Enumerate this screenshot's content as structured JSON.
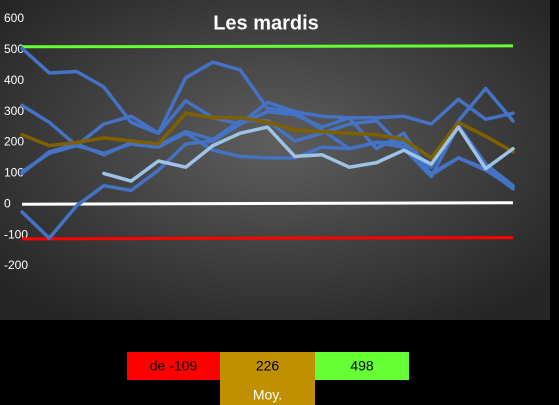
{
  "chart_data": {
    "type": "line",
    "title": "Les mardis",
    "categories": [
      null,
      null,
      null,
      null,
      null,
      null,
      null,
      null,
      null,
      null,
      null,
      null,
      null,
      null,
      null,
      null,
      null,
      null,
      null
    ],
    "ylim": [
      -200,
      600
    ],
    "yticks": [
      -200,
      -100,
      0,
      100,
      200,
      300,
      400,
      500,
      600
    ],
    "grid": false,
    "series": [
      {
        "color": "#4472c4",
        "values": [
          505,
          425,
          430,
          380,
          265,
          230,
          410,
          460,
          435,
          310,
          300,
          285,
          280,
          280,
          285,
          260,
          340,
          275,
          295
        ]
      },
      {
        "color": "#4472c4",
        "values": [
          320,
          265,
          190,
          260,
          285,
          230,
          335,
          280,
          260,
          300,
          290,
          250,
          280,
          180,
          230,
          95,
          150,
          115,
          50
        ]
      },
      {
        "color": "#4472c4",
        "values": [
          -25,
          -110,
          -5,
          60,
          45,
          110,
          195,
          205,
          260,
          330,
          300,
          240,
          180,
          200,
          200,
          120,
          270,
          375,
          270
        ]
      },
      {
        "color": "#4472c4",
        "values": [
          100,
          170,
          195,
          160,
          200,
          190,
          235,
          210,
          270,
          270,
          205,
          230,
          260,
          270,
          180,
          90,
          255,
          130,
          60
        ]
      },
      {
        "color": "#4472c4",
        "values": [
          105,
          165,
          190,
          165,
          195,
          185,
          230,
          175,
          155,
          150,
          150,
          185,
          180,
          200,
          185,
          100,
          150,
          110,
          55
        ]
      },
      {
        "color": "#7f6000",
        "values": [
          225,
          190,
          200,
          215,
          205,
          195,
          295,
          280,
          280,
          265,
          240,
          235,
          230,
          225,
          210,
          150,
          265,
          220,
          170
        ]
      },
      {
        "color": "#9dc3e6",
        "values": [
          null,
          null,
          null,
          100,
          75,
          140,
          120,
          190,
          230,
          250,
          155,
          160,
          120,
          135,
          175,
          130,
          250,
          115,
          180
        ]
      }
    ],
    "reference_lines": [
      {
        "color": "#66ff33",
        "values": [
          510,
          513
        ]
      },
      {
        "color": "#ffffff",
        "values": [
          0,
          5
        ]
      },
      {
        "color": "#ff0000",
        "values": [
          -112,
          -108
        ]
      }
    ]
  },
  "summary": [
    {
      "text": "de -109",
      "color": "#ff0000"
    },
    {
      "text": "226",
      "color": "#bf9000",
      "caption": "Moy."
    },
    {
      "text": "498",
      "color": "#66ff33"
    }
  ]
}
